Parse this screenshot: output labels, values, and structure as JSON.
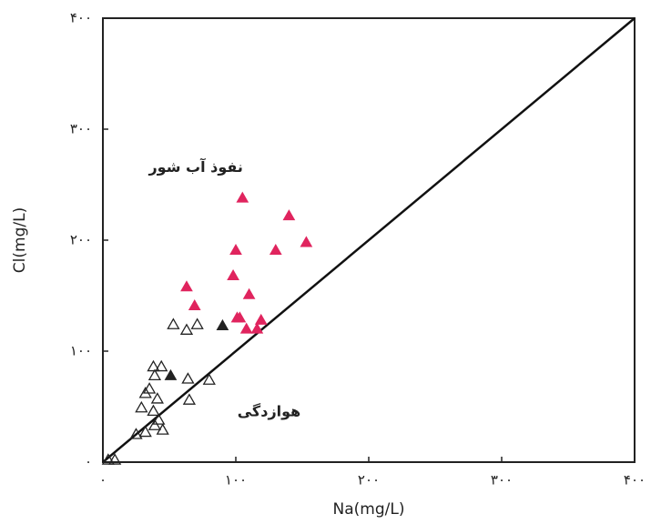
{
  "chart_data": {
    "type": "scatter",
    "x_label": "Na(mg/L)",
    "y_label": "Cl(mg/L)",
    "xlim": [
      0,
      400
    ],
    "ylim": [
      0,
      400
    ],
    "xticks": [
      {
        "value": 0,
        "label": "۰"
      },
      {
        "value": 100,
        "label": "۱۰۰"
      },
      {
        "value": 200,
        "label": "۲۰۰"
      },
      {
        "value": 300,
        "label": "۳۰۰"
      },
      {
        "value": 400,
        "label": "۴۰۰"
      }
    ],
    "yticks": [
      {
        "value": 0,
        "label": "۰"
      },
      {
        "value": 100,
        "label": "۱۰۰"
      },
      {
        "value": 200,
        "label": "۲۰۰"
      },
      {
        "value": 300,
        "label": "۳۰۰"
      },
      {
        "value": 400,
        "label": "۴۰۰"
      }
    ],
    "reference_line": {
      "x": [
        0,
        400
      ],
      "y": [
        0,
        400
      ]
    },
    "annotations": [
      {
        "text": "نفوذ آب شور",
        "x": 70,
        "y": 265
      },
      {
        "text": "هوازدگی",
        "x": 125,
        "y": 45
      }
    ],
    "series": [
      {
        "color": "#e0245e",
        "marker": "filled",
        "x": [
          105,
          140,
          153,
          100,
          130,
          98,
          63,
          110,
          69,
          101,
          103,
          119,
          108,
          116
        ],
        "values": [
          238,
          222,
          198,
          191,
          191,
          168,
          158,
          151,
          141,
          130,
          130,
          128,
          120,
          120
        ]
      },
      {
        "color": "#222222",
        "marker": "filled",
        "x": [
          90,
          51
        ],
        "values": [
          123,
          78
        ]
      },
      {
        "color": "#222222",
        "marker": "open",
        "x": [
          53,
          63,
          71,
          38,
          44,
          39,
          64,
          80,
          32,
          35,
          41,
          65,
          29,
          38,
          42,
          39,
          25,
          32,
          45,
          9,
          4
        ],
        "values": [
          124,
          119,
          124,
          86,
          86,
          78,
          75,
          74,
          62,
          66,
          57,
          56,
          49,
          46,
          38,
          33,
          25,
          27,
          29,
          2,
          2
        ]
      }
    ]
  }
}
